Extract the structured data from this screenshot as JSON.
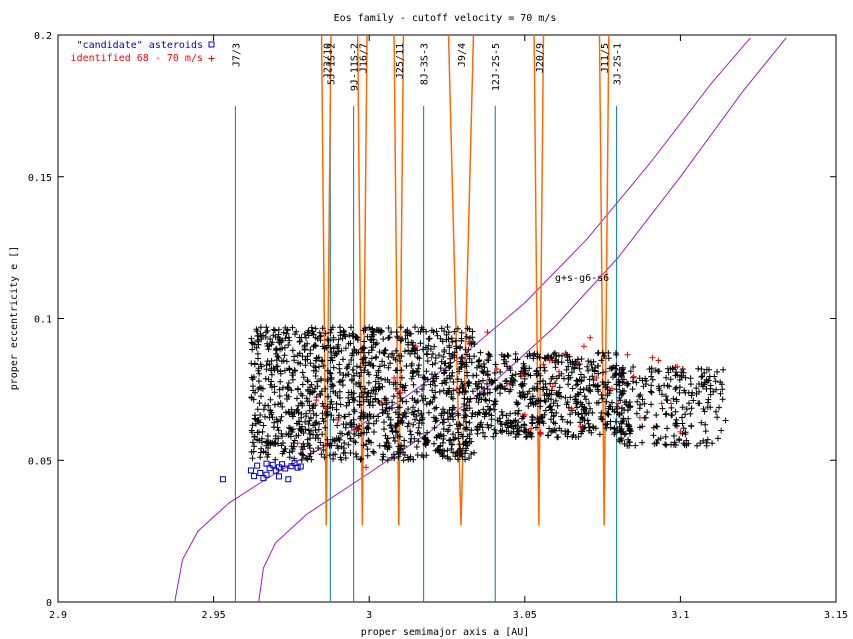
{
  "chart_data": {
    "type": "scatter",
    "title": "Eos family - cutoff velocity = 70 m/s",
    "xlabel": "proper semimajor axis a [AU]",
    "ylabel": "proper eccentricity e []",
    "xlim": [
      2.9,
      3.15
    ],
    "ylim": [
      0,
      0.2
    ],
    "x_ticks": [
      {
        "value": 2.9,
        "label": "2.9"
      },
      {
        "value": 2.95,
        "label": "2.95"
      },
      {
        "value": 3.0,
        "label": "3"
      },
      {
        "value": 3.05,
        "label": "3.05"
      },
      {
        "value": 3.1,
        "label": "3.1"
      },
      {
        "value": 3.15,
        "label": "3.15"
      }
    ],
    "y_ticks": [
      {
        "value": 0,
        "label": "0"
      },
      {
        "value": 0.05,
        "label": "0.05"
      },
      {
        "value": 0.1,
        "label": "0.1"
      },
      {
        "value": 0.15,
        "label": "0.15"
      },
      {
        "value": 0.2,
        "label": "0.2"
      }
    ],
    "grid": false,
    "legend_position": "top-left",
    "series": [
      {
        "name": "\"candidate\" asteroids",
        "marker": "square",
        "color": "#0000cc",
        "points": [
          [
            2.953,
            0.0433
          ],
          [
            2.962,
            0.0464
          ],
          [
            2.963,
            0.0444
          ],
          [
            2.964,
            0.0481
          ],
          [
            2.965,
            0.0455
          ],
          [
            2.966,
            0.0437
          ],
          [
            2.967,
            0.0449
          ],
          [
            2.968,
            0.0472
          ],
          [
            2.969,
            0.0484
          ],
          [
            2.97,
            0.0463
          ],
          [
            2.971,
            0.0443
          ],
          [
            2.972,
            0.0486
          ],
          [
            2.973,
            0.0471
          ],
          [
            2.974,
            0.0433
          ],
          [
            2.975,
            0.0479
          ],
          [
            2.976,
            0.049
          ],
          [
            2.977,
            0.0474
          ],
          [
            2.978,
            0.0478
          ],
          [
            2.967,
            0.0488
          ],
          [
            2.971,
            0.0475
          ]
        ]
      },
      {
        "name": "identified 68 - 70 m/s",
        "marker": "plus",
        "color": "#ff0000",
        "points": [
          [
            2.977,
            0.056
          ],
          [
            2.983,
            0.0712
          ],
          [
            2.986,
            0.0682
          ],
          [
            2.99,
            0.0642
          ],
          [
            2.996,
            0.061
          ],
          [
            2.999,
            0.0475
          ],
          [
            3.004,
            0.0702
          ],
          [
            3.008,
            0.079
          ],
          [
            3.015,
            0.0902
          ],
          [
            3.02,
            0.0862
          ],
          [
            3.032,
            0.0918
          ],
          [
            3.038,
            0.0952
          ],
          [
            3.041,
            0.0822
          ],
          [
            3.045,
            0.077
          ],
          [
            3.049,
            0.0802
          ],
          [
            3.052,
            0.0612
          ],
          [
            3.055,
            0.0598
          ],
          [
            3.056,
            0.0838
          ],
          [
            3.058,
            0.0852
          ],
          [
            3.061,
            0.0812
          ],
          [
            3.063,
            0.0878
          ],
          [
            3.065,
            0.0682
          ],
          [
            3.067,
            0.0842
          ],
          [
            3.069,
            0.0902
          ],
          [
            3.071,
            0.0932
          ],
          [
            3.073,
            0.079
          ],
          [
            3.076,
            0.0812
          ],
          [
            3.078,
            0.0752
          ],
          [
            3.083,
            0.0872
          ],
          [
            3.085,
            0.0795
          ],
          [
            3.091,
            0.0862
          ],
          [
            3.093,
            0.0852
          ],
          [
            3.094,
            0.07
          ],
          [
            3.097,
            0.07
          ],
          [
            3.1,
            0.06
          ],
          [
            3.099,
            0.083
          ],
          [
            3.087,
            0.065
          ],
          [
            3.08,
            0.07
          ],
          [
            3.068,
            0.062
          ],
          [
            3.059,
            0.076
          ],
          [
            3.05,
            0.066
          ],
          [
            3.028,
            0.075
          ],
          [
            3.01,
            0.074
          ]
        ]
      }
    ],
    "background_population": {
      "marker": "plus",
      "color": "#000000",
      "count": 2100,
      "a_range": [
        2.96,
        3.115
      ],
      "e_range": [
        0.048,
        0.098
      ]
    },
    "resonances": [
      {
        "label": "J7/3",
        "a": 2.957,
        "color": "#0a7a9f",
        "e_top": 0.175
      },
      {
        "label": "5J-1S-2",
        "a": 2.9875,
        "color": "#0a7a9f",
        "e_top": 0.175
      },
      {
        "label": "9J-11S-2",
        "a": 2.995,
        "color": "#0a7a9f",
        "e_top": 0.175
      },
      {
        "label": "8J-3S-3",
        "a": 3.0175,
        "color": "#0a7a9f",
        "e_top": 0.175
      },
      {
        "label": "12J-2S-5",
        "a": 3.0405,
        "color": "#0a7a9f",
        "e_top": 0.175
      },
      {
        "label": "3J-2S-1",
        "a": 3.0795,
        "color": "#0a7a9f",
        "e_top": 0.175
      },
      {
        "label": "J23/10",
        "a": 2.9862,
        "color": "#ff6a00",
        "e_top": 0.2
      },
      {
        "label": "J16/7",
        "a": 2.9978,
        "color": "#ff6a00",
        "e_top": 0.2
      },
      {
        "label": "J25/11",
        "a": 3.0095,
        "color": "#ff6a00",
        "e_top": 0.2
      },
      {
        "label": "J9/4",
        "a": 3.0295,
        "color": "#ff6a00",
        "e_top": 0.2
      },
      {
        "label": "J20/9",
        "a": 3.0545,
        "color": "#ff6a00",
        "e_top": 0.2
      },
      {
        "label": "J11/5",
        "a": 3.0755,
        "color": "#ff6a00",
        "e_top": 0.2
      }
    ],
    "secular_resonance": {
      "label": "g+s-g6-s6",
      "color": "#a020c0",
      "curves": [
        [
          [
            2.9375,
            0.0
          ],
          [
            2.94,
            0.015
          ],
          [
            2.945,
            0.025
          ],
          [
            2.955,
            0.035
          ],
          [
            2.97,
            0.0455
          ],
          [
            2.99,
            0.0575
          ],
          [
            3.01,
            0.071
          ],
          [
            3.03,
            0.087
          ],
          [
            3.05,
            0.1055
          ],
          [
            3.07,
            0.128
          ],
          [
            3.09,
            0.1545
          ],
          [
            3.11,
            0.183
          ],
          [
            3.1225,
            0.199
          ]
        ],
        [
          [
            2.9645,
            0.0
          ],
          [
            2.966,
            0.012
          ],
          [
            2.97,
            0.021
          ],
          [
            2.98,
            0.031
          ],
          [
            3.0,
            0.0455
          ],
          [
            3.02,
            0.0605
          ],
          [
            3.04,
            0.0775
          ],
          [
            3.06,
            0.0975
          ],
          [
            3.08,
            0.1215
          ],
          [
            3.1,
            0.15
          ],
          [
            3.12,
            0.18
          ],
          [
            3.134,
            0.199
          ]
        ]
      ]
    }
  }
}
